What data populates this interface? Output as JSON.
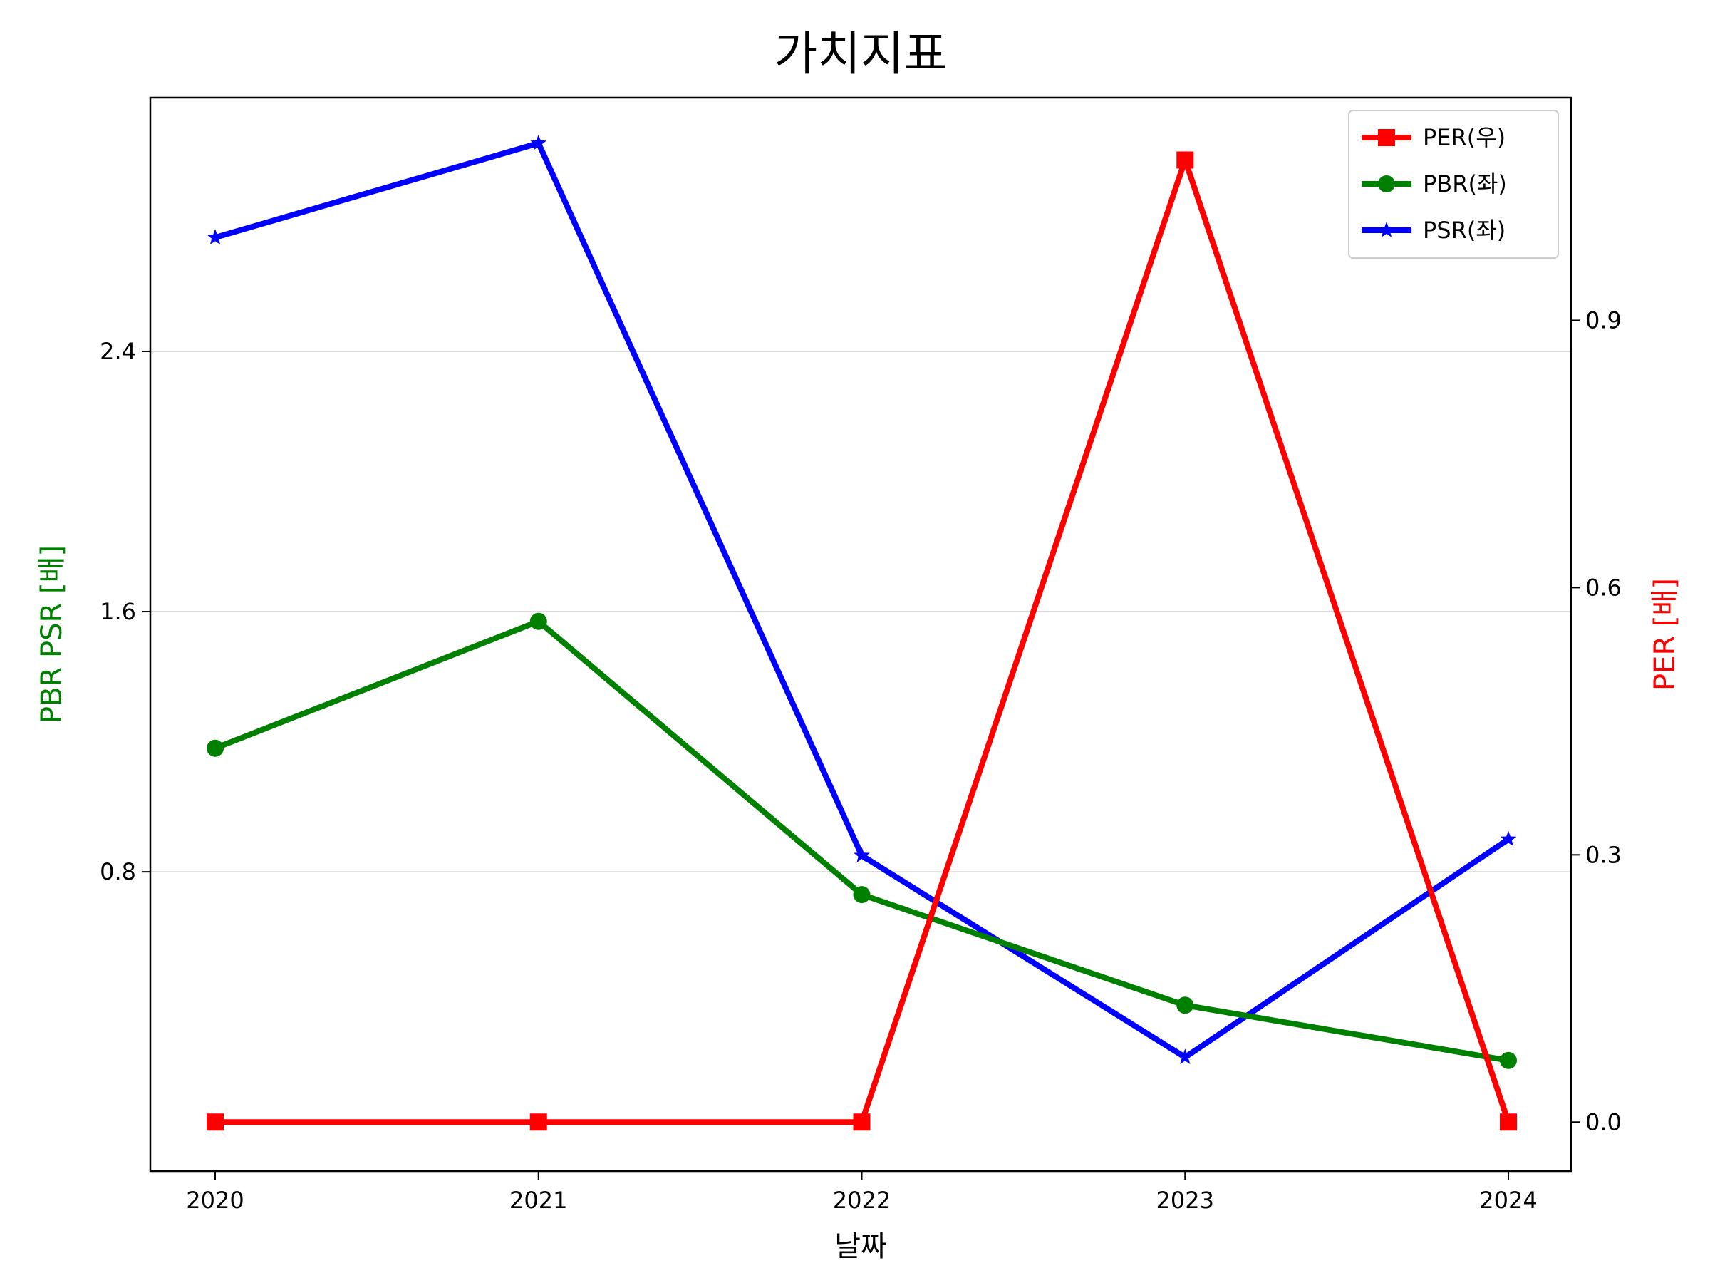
{
  "chart_data": {
    "type": "line",
    "title": "가치지표",
    "xlabel": "날짜",
    "ylabel_left": "PBR PSR [배]",
    "ylabel_right": "PER [배]",
    "ylabel_left_color": "#008000",
    "ylabel_right_color": "#ff0000",
    "x": [
      "2020",
      "2021",
      "2022",
      "2023",
      "2024"
    ],
    "left_axis": {
      "ylim": [
        -0.12,
        3.18
      ],
      "ticks": [
        "0.8",
        "1.6",
        "2.4"
      ],
      "grid": true
    },
    "right_axis": {
      "ylim": [
        -0.055,
        1.15
      ],
      "ticks": [
        "0.0",
        "0.3",
        "0.6",
        "0.9"
      ]
    },
    "legend_position": "top-right",
    "series": [
      {
        "name": "PER(우)",
        "axis": "right",
        "color": "#ff0000",
        "marker": "square",
        "values": [
          0,
          0,
          0,
          1.08,
          0
        ]
      },
      {
        "name": "PBR(좌)",
        "axis": "left",
        "color": "#008000",
        "marker": "circle",
        "values": [
          1.18,
          1.57,
          0.73,
          0.39,
          0.22
        ]
      },
      {
        "name": "PSR(좌)",
        "axis": "left",
        "color": "#0000ff",
        "marker": "star",
        "values": [
          2.75,
          3.04,
          0.85,
          0.23,
          0.9
        ]
      }
    ]
  }
}
